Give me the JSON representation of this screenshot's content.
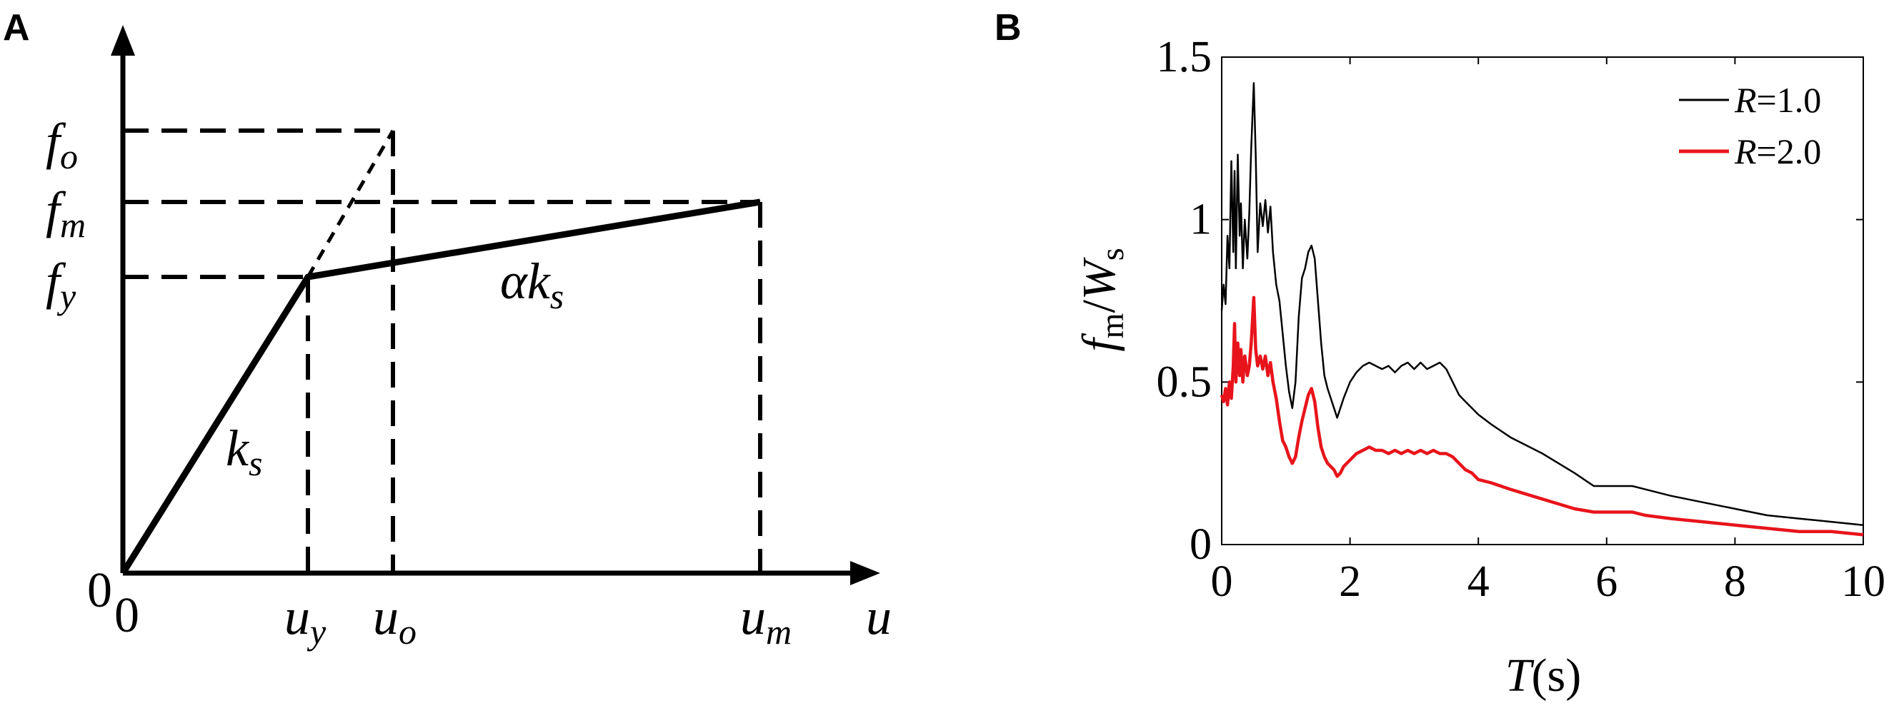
{
  "panels": {
    "a_label": "A",
    "b_label": "B"
  },
  "diagram": {
    "origin_x": "0",
    "origin_y": "0",
    "x_axis_name": "u",
    "y_labels": [
      {
        "main": "f",
        "sub": "o"
      },
      {
        "main": "f",
        "sub": "m"
      },
      {
        "main": "f",
        "sub": "y"
      }
    ],
    "x_labels": [
      {
        "main": "u",
        "sub": "y"
      },
      {
        "main": "u",
        "sub": "o"
      },
      {
        "main": "u",
        "sub": "m"
      }
    ],
    "slope_initial": {
      "main": "k",
      "sub": "s"
    },
    "slope_post": {
      "prefix": "αk",
      "sub": "s"
    }
  },
  "chart_data": {
    "type": "line",
    "xlabel": {
      "main": "T",
      "unit": "(s)"
    },
    "ylabel": {
      "num": "f",
      "num_sub": "m",
      "den": "W",
      "den_sub": "s"
    },
    "xlim": [
      0,
      10
    ],
    "ylim": [
      0,
      1.5
    ],
    "xticks": [
      "0",
      "2",
      "4",
      "6",
      "8",
      "10"
    ],
    "yticks": [
      "0",
      "0.5",
      "1",
      "1.5"
    ],
    "grid": false,
    "legend": "top-right",
    "series": [
      {
        "name": "R=1.0",
        "legend_var": "R",
        "legend_val": "=1.0",
        "color": "#000000",
        "x": [
          0,
          0.03,
          0.06,
          0.09,
          0.12,
          0.15,
          0.18,
          0.2,
          0.22,
          0.25,
          0.28,
          0.3,
          0.33,
          0.36,
          0.4,
          0.43,
          0.46,
          0.5,
          0.53,
          0.56,
          0.6,
          0.64,
          0.68,
          0.72,
          0.76,
          0.8,
          0.85,
          0.9,
          0.95,
          1.0,
          1.05,
          1.1,
          1.15,
          1.2,
          1.25,
          1.3,
          1.35,
          1.4,
          1.45,
          1.5,
          1.55,
          1.6,
          1.65,
          1.7,
          1.75,
          1.8,
          1.85,
          1.9,
          2.0,
          2.1,
          2.2,
          2.3,
          2.4,
          2.5,
          2.6,
          2.7,
          2.8,
          2.9,
          3.0,
          3.1,
          3.2,
          3.3,
          3.4,
          3.5,
          3.6,
          3.7,
          3.8,
          3.9,
          4.0,
          4.2,
          4.5,
          5.0,
          5.5,
          5.8,
          6.0,
          6.2,
          6.4,
          6.6,
          7.0,
          7.5,
          8.0,
          8.5,
          9.0,
          9.5,
          10.0
        ],
        "values": [
          0.72,
          0.8,
          0.74,
          0.95,
          0.85,
          1.18,
          0.9,
          1.15,
          0.85,
          1.2,
          0.95,
          1.05,
          0.85,
          1.0,
          0.88,
          1.02,
          1.22,
          1.42,
          1.2,
          0.9,
          1.05,
          0.98,
          1.06,
          0.96,
          1.04,
          0.9,
          0.8,
          0.75,
          0.65,
          0.55,
          0.47,
          0.42,
          0.5,
          0.7,
          0.82,
          0.85,
          0.9,
          0.92,
          0.88,
          0.75,
          0.62,
          0.52,
          0.48,
          0.45,
          0.42,
          0.39,
          0.42,
          0.45,
          0.5,
          0.53,
          0.55,
          0.56,
          0.55,
          0.54,
          0.55,
          0.53,
          0.55,
          0.56,
          0.54,
          0.56,
          0.54,
          0.55,
          0.56,
          0.54,
          0.5,
          0.46,
          0.44,
          0.42,
          0.4,
          0.37,
          0.33,
          0.28,
          0.22,
          0.18,
          0.18,
          0.18,
          0.18,
          0.17,
          0.15,
          0.13,
          0.11,
          0.09,
          0.08,
          0.07,
          0.06
        ]
      },
      {
        "name": "R=2.0",
        "legend_var": "R",
        "legend_val": "=2.0",
        "color": "#e8141b",
        "x": [
          0,
          0.03,
          0.06,
          0.09,
          0.12,
          0.15,
          0.18,
          0.2,
          0.22,
          0.25,
          0.28,
          0.3,
          0.33,
          0.36,
          0.4,
          0.43,
          0.46,
          0.5,
          0.53,
          0.56,
          0.6,
          0.64,
          0.68,
          0.72,
          0.76,
          0.8,
          0.85,
          0.9,
          0.95,
          1.0,
          1.05,
          1.1,
          1.15,
          1.2,
          1.25,
          1.3,
          1.35,
          1.4,
          1.45,
          1.5,
          1.55,
          1.6,
          1.65,
          1.7,
          1.75,
          1.8,
          1.85,
          1.9,
          2.0,
          2.1,
          2.2,
          2.3,
          2.4,
          2.5,
          2.6,
          2.7,
          2.8,
          2.9,
          3.0,
          3.1,
          3.2,
          3.3,
          3.4,
          3.5,
          3.6,
          3.7,
          3.8,
          3.9,
          4.0,
          4.2,
          4.5,
          5.0,
          5.5,
          5.8,
          6.0,
          6.2,
          6.4,
          6.6,
          7.0,
          7.5,
          8.0,
          8.5,
          9.0,
          9.5,
          10.0
        ],
        "values": [
          0.46,
          0.44,
          0.48,
          0.43,
          0.5,
          0.45,
          0.55,
          0.68,
          0.5,
          0.62,
          0.52,
          0.6,
          0.5,
          0.58,
          0.52,
          0.55,
          0.62,
          0.76,
          0.6,
          0.55,
          0.58,
          0.54,
          0.58,
          0.52,
          0.56,
          0.5,
          0.45,
          0.38,
          0.32,
          0.3,
          0.27,
          0.25,
          0.27,
          0.33,
          0.38,
          0.42,
          0.46,
          0.48,
          0.44,
          0.36,
          0.3,
          0.27,
          0.25,
          0.24,
          0.23,
          0.21,
          0.22,
          0.24,
          0.26,
          0.28,
          0.29,
          0.3,
          0.29,
          0.29,
          0.28,
          0.29,
          0.28,
          0.29,
          0.28,
          0.29,
          0.28,
          0.29,
          0.28,
          0.28,
          0.27,
          0.25,
          0.23,
          0.22,
          0.2,
          0.19,
          0.17,
          0.14,
          0.11,
          0.1,
          0.1,
          0.1,
          0.1,
          0.09,
          0.08,
          0.07,
          0.06,
          0.05,
          0.04,
          0.04,
          0.03
        ]
      }
    ]
  }
}
